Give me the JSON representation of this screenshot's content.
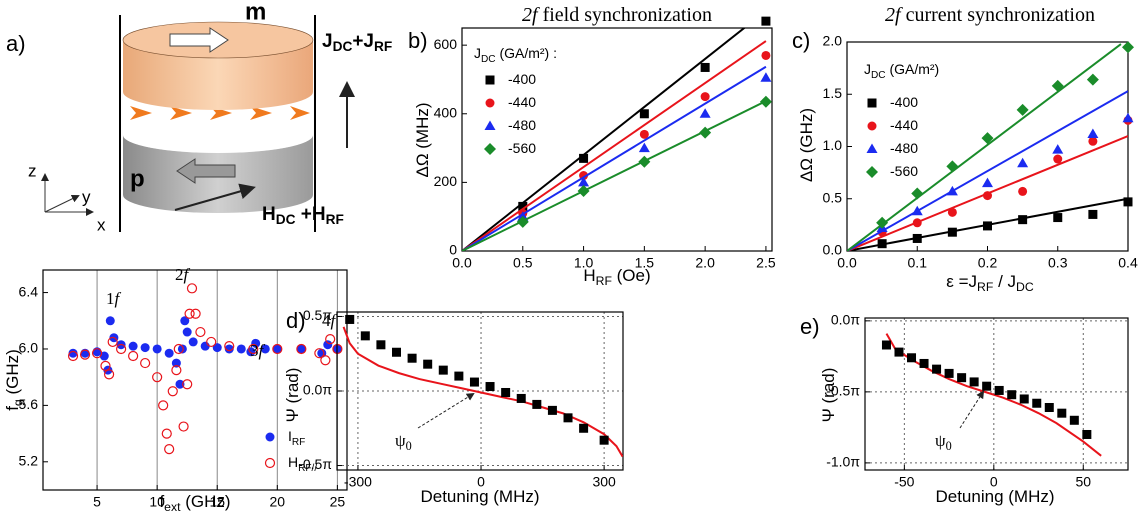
{
  "schematic": {
    "panel": "a)",
    "top_layer": "m",
    "bottom_layer": "p",
    "axes": [
      "z",
      "y",
      "x"
    ],
    "current": [
      {
        "text": "J"
      },
      {
        "text": "DC",
        "sub": true
      },
      {
        "text": "+J"
      },
      {
        "text": "RF",
        "sub": true
      }
    ],
    "field": [
      {
        "text": "H"
      },
      {
        "text": "DC",
        "sub": true
      },
      {
        "text": " +H"
      },
      {
        "text": "RF",
        "sub": true
      }
    ]
  },
  "chart_data": [
    {
      "type": "scatter",
      "xlabel": [
        {
          "text": "f"
        },
        {
          "text": "ext",
          "sub": true
        },
        {
          "text": " (GHz)"
        }
      ],
      "ylabel": [
        {
          "text": "f"
        },
        {
          "text": "g",
          "sub": true
        },
        {
          "text": " (GHz)"
        }
      ],
      "xlim": [
        0.5,
        25.8
      ],
      "ylim": [
        5.0,
        6.56
      ],
      "xticks": [
        5,
        10,
        15,
        20,
        25
      ],
      "yticks": [
        5.2,
        5.6,
        {
          "value": 6,
          "label": "6.0"
        },
        6.4
      ],
      "grid": "x",
      "legend": "lower right",
      "annotations": [
        [
          {
            "text": "1"
          },
          {
            "text": "f",
            "italic": true
          }
        ],
        [
          {
            "text": "2"
          },
          {
            "text": "f",
            "italic": true
          }
        ],
        [
          {
            "text": "3"
          },
          {
            "text": "f",
            "italic": true
          }
        ],
        [
          {
            "text": "4"
          },
          {
            "text": "f",
            "italic": true
          }
        ]
      ],
      "series": [
        {
          "name": [
            {
              "text": "I"
            },
            {
              "text": "RF",
              "sub": true
            }
          ],
          "color": "#1b2bf0",
          "marker": "circle",
          "x": [
            3,
            4,
            5,
            5.6,
            5.9,
            6.1,
            6.4,
            7,
            8,
            9,
            10,
            11,
            11.6,
            11.9,
            12.1,
            12.3,
            12.5,
            13,
            14,
            15,
            16,
            17,
            17.8,
            18.2,
            19,
            20,
            22,
            23.7,
            24.2,
            25
          ],
          "values": [
            5.97,
            5.97,
            5.98,
            5.95,
            5.85,
            6.2,
            6.08,
            6.03,
            6.02,
            6.01,
            6.0,
            5.97,
            5.9,
            5.75,
            6.0,
            6.2,
            6.12,
            6.05,
            6.02,
            6.01,
            6.0,
            6.0,
            5.98,
            6.04,
            6.0,
            6.0,
            6.0,
            5.97,
            6.03,
            6.0
          ]
        },
        {
          "name": [
            {
              "text": "H"
            },
            {
              "text": "RF//",
              "sub": true
            }
          ],
          "color": "#e8141b",
          "marker": "open-circle",
          "x": [
            3,
            4,
            5,
            5.7,
            6,
            6.3,
            7,
            8,
            9,
            10,
            10.5,
            10.8,
            11,
            11.3,
            11.6,
            11.8,
            12.2,
            12.5,
            12.7,
            12.9,
            13.2,
            13.6,
            14.5,
            16,
            18,
            20,
            22,
            23.5,
            24,
            24.4,
            25
          ],
          "values": [
            5.95,
            5.96,
            5.97,
            5.88,
            5.82,
            6.05,
            6.0,
            5.95,
            5.9,
            5.8,
            5.6,
            5.4,
            5.29,
            5.7,
            5.85,
            6.0,
            5.45,
            5.75,
            6.25,
            6.43,
            6.25,
            6.12,
            6.05,
            6.02,
            6.0,
            6.0,
            6.0,
            5.97,
            5.92,
            6.07,
            6.0
          ]
        }
      ]
    },
    {
      "type": "scatter",
      "panel": "b)",
      "title": [
        {
          "text": "2f",
          "italic": true
        },
        {
          "text": " field synchronization"
        }
      ],
      "xlabel": [
        {
          "text": "H"
        },
        {
          "text": "RF",
          "sub": true
        },
        {
          "text": " (Oe)"
        }
      ],
      "ylabel": [
        {
          "text": "ΔΩ (MHz)"
        }
      ],
      "xlim": [
        0,
        2.55
      ],
      "ylim": [
        0,
        650
      ],
      "xticks": [
        {
          "value": 0,
          "label": "0.0"
        },
        0.5,
        {
          "value": 1,
          "label": "1.0"
        },
        1.5,
        {
          "value": 2,
          "label": "2.0"
        },
        2.5
      ],
      "yticks": [
        0,
        200,
        400,
        600
      ],
      "legend": "upper left",
      "legend_title": [
        {
          "text": "J"
        },
        {
          "text": "DC",
          "sub": true
        },
        {
          "text": " (GA/m²) :"
        }
      ],
      "series": [
        {
          "name": [
            {
              "text": "-400"
            }
          ],
          "color": "#000000",
          "marker": "square",
          "x": [
            0.5,
            1,
            1.5,
            2,
            2.5
          ],
          "values": [
            130,
            270,
            400,
            535,
            670
          ],
          "fit_x": [
            0,
            2.5
          ],
          "fit_values": [
            0,
            700
          ]
        },
        {
          "name": [
            {
              "text": "-440"
            }
          ],
          "color": "#e8141b",
          "marker": "circle",
          "x": [
            0.5,
            1,
            1.5,
            2,
            2.5
          ],
          "values": [
            110,
            220,
            340,
            450,
            570
          ],
          "fit_x": [
            0,
            2.5
          ],
          "fit_values": [
            0,
            612
          ]
        },
        {
          "name": [
            {
              "text": "-480"
            }
          ],
          "color": "#1b2bf0",
          "marker": "triangle",
          "x": [
            0.5,
            1,
            1.5,
            2,
            2.5
          ],
          "values": [
            100,
            200,
            300,
            400,
            505
          ],
          "fit_x": [
            0,
            2.5
          ],
          "fit_values": [
            0,
            537
          ]
        },
        {
          "name": [
            {
              "text": "-560"
            }
          ],
          "color": "#1a8c2a",
          "marker": "diamond",
          "x": [
            0.5,
            1,
            1.5,
            2,
            2.5
          ],
          "values": [
            85,
            175,
            260,
            345,
            435
          ],
          "fit_x": [
            0,
            2.5
          ],
          "fit_values": [
            0,
            437
          ]
        }
      ]
    },
    {
      "type": "scatter",
      "panel": "c)",
      "title": [
        {
          "text": "2f",
          "italic": true
        },
        {
          "text": " current synchronization"
        }
      ],
      "xlabel": [
        {
          "text": "ε =J"
        },
        {
          "text": "RF",
          "sub": true
        },
        {
          "text": " / J"
        },
        {
          "text": "DC",
          "sub": true
        }
      ],
      "ylabel": [
        {
          "text": "ΔΩ (GHz)"
        }
      ],
      "xlim": [
        0,
        0.4
      ],
      "ylim": [
        0,
        2
      ],
      "xticks": [
        {
          "value": 0,
          "label": "0.0"
        },
        0.1,
        0.2,
        0.3,
        0.4
      ],
      "yticks": [
        {
          "value": 0,
          "label": "0.0"
        },
        0.5,
        {
          "value": 1,
          "label": "1.0"
        },
        1.5,
        {
          "value": 2,
          "label": "2.0"
        }
      ],
      "legend": "upper left",
      "legend_title": [
        {
          "text": "J"
        },
        {
          "text": "DC",
          "sub": true
        },
        {
          "text": " (GA/m²)"
        }
      ],
      "series": [
        {
          "name": [
            {
              "text": "-400"
            }
          ],
          "color": "#000000",
          "marker": "square",
          "x": [
            0.05,
            0.1,
            0.15,
            0.2,
            0.25,
            0.3,
            0.35,
            0.4
          ],
          "values": [
            0.07,
            0.12,
            0.18,
            0.24,
            0.3,
            0.32,
            0.35,
            0.47
          ],
          "fit_x": [
            0,
            0.4
          ],
          "fit_values": [
            0,
            0.5
          ]
        },
        {
          "name": [
            {
              "text": "-440"
            }
          ],
          "color": "#e8141b",
          "marker": "circle",
          "x": [
            0.05,
            0.1,
            0.15,
            0.2,
            0.25,
            0.3,
            0.35,
            0.4
          ],
          "values": [
            0.18,
            0.27,
            0.37,
            0.53,
            0.57,
            0.88,
            1.05,
            1.25
          ],
          "fit_x": [
            0,
            0.4
          ],
          "fit_values": [
            0,
            1.1
          ]
        },
        {
          "name": [
            {
              "text": "-480"
            }
          ],
          "color": "#1b2bf0",
          "marker": "triangle",
          "x": [
            0.05,
            0.1,
            0.15,
            0.2,
            0.25,
            0.3,
            0.35,
            0.4
          ],
          "values": [
            0.22,
            0.38,
            0.57,
            0.65,
            0.84,
            0.97,
            1.12,
            1.27
          ],
          "fit_x": [
            0,
            0.4
          ],
          "fit_values": [
            0,
            1.53
          ]
        },
        {
          "name": [
            {
              "text": "-560"
            }
          ],
          "color": "#1a8c2a",
          "marker": "diamond",
          "x": [
            0.05,
            0.1,
            0.15,
            0.2,
            0.25,
            0.3,
            0.35,
            0.4
          ],
          "values": [
            0.27,
            0.55,
            0.81,
            1.08,
            1.35,
            1.58,
            1.64,
            1.95
          ],
          "fit_x": [
            0,
            0.39
          ],
          "fit_values": [
            0,
            1.98
          ]
        }
      ]
    },
    {
      "type": "scatter",
      "panel": "d)",
      "xlabel": [
        {
          "text": "Detuning (MHz)"
        }
      ],
      "ylabel": [
        {
          "text": "Ψ (rad)"
        }
      ],
      "xlim": [
        -351,
        346
      ],
      "ylim": [
        -0.53,
        0.53
      ],
      "xticks": [
        -300,
        0,
        300
      ],
      "yticks": [
        {
          "value": -0.5,
          "label": "-0.5π"
        },
        {
          "value": 0,
          "label": "0.0π"
        },
        {
          "value": 0.5,
          "label": "0.5π"
        }
      ],
      "grid": "both",
      "annotations": [
        [
          {
            "text": "ψ"
          },
          {
            "text": "0",
            "sub": true
          }
        ]
      ],
      "series": [
        {
          "color": "#000000",
          "marker": "square",
          "x": [
            -320,
            -282,
            -244,
            -206,
            -168,
            -130,
            -92,
            -54,
            -16,
            22,
            60,
            98,
            136,
            174,
            212,
            250,
            300
          ],
          "values": [
            0.48,
            0.37,
            0.31,
            0.26,
            0.22,
            0.18,
            0.14,
            0.1,
            0.06,
            0.03,
            -0.01,
            -0.05,
            -0.09,
            -0.13,
            -0.18,
            -0.25,
            -0.33
          ],
          "curve_color": "#e8141b",
          "curve_x": [
            -335,
            -320,
            -300,
            -250,
            -200,
            -150,
            -100,
            -50,
            0,
            50,
            100,
            150,
            200,
            250,
            300,
            330,
            345
          ],
          "curve_values": [
            0.43,
            0.32,
            0.25,
            0.17,
            0.12,
            0.08,
            0.05,
            0.02,
            -0.01,
            -0.04,
            -0.07,
            -0.11,
            -0.15,
            -0.21,
            -0.29,
            -0.37,
            -0.44
          ]
        }
      ]
    },
    {
      "type": "scatter",
      "panel": "e)",
      "xlabel": [
        {
          "text": "Detuning (MHz)"
        }
      ],
      "ylabel": [
        {
          "text": "Ψ (rad)"
        }
      ],
      "xlim": [
        -72,
        75
      ],
      "ylim": [
        -1.05,
        0.02
      ],
      "xticks": [
        -50,
        0,
        50
      ],
      "yticks": [
        {
          "value": -1,
          "label": "-1.0π"
        },
        {
          "value": -0.5,
          "label": "-0.5π"
        },
        {
          "value": 0,
          "label": "0.0π"
        }
      ],
      "grid": "both",
      "annotations": [
        [
          {
            "text": "ψ"
          },
          {
            "text": "0",
            "sub": true
          }
        ]
      ],
      "series": [
        {
          "color": "#000000",
          "marker": "square",
          "x": [
            -60,
            -53,
            -46,
            -39,
            -32,
            -25,
            -18,
            -11,
            -4,
            3,
            10,
            17,
            24,
            31,
            38,
            45,
            52
          ],
          "values": [
            -0.17,
            -0.22,
            -0.26,
            -0.3,
            -0.34,
            -0.37,
            -0.4,
            -0.43,
            -0.46,
            -0.49,
            -0.52,
            -0.55,
            -0.58,
            -0.61,
            -0.65,
            -0.7,
            -0.8
          ],
          "curve_color": "#e8141b",
          "curve_x": [
            -60,
            -55,
            -45,
            -35,
            -25,
            -15,
            -5,
            5,
            15,
            25,
            35,
            50,
            60
          ],
          "curve_values": [
            -0.09,
            -0.2,
            -0.28,
            -0.35,
            -0.41,
            -0.46,
            -0.5,
            -0.54,
            -0.59,
            -0.65,
            -0.72,
            -0.85,
            -0.95
          ]
        }
      ]
    }
  ]
}
